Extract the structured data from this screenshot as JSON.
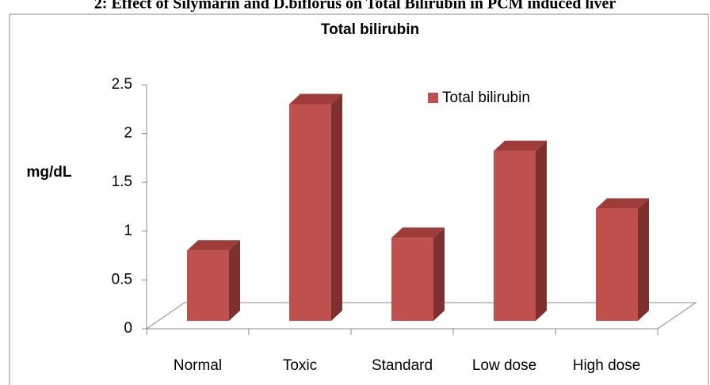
{
  "caption": "2: Effect of Silymarin and D.biflorus on Total Bilirubin in PCM induced liver",
  "chart_data": {
    "type": "bar3d",
    "title": "Total bilirubin",
    "y_label": "mg/dL",
    "categories": [
      "Normal",
      "Toxic",
      "Standard",
      "Low dose",
      "High dose"
    ],
    "series": [
      {
        "name": "Total bilirubin",
        "color": "#c0504d",
        "values": [
          0.72,
          2.22,
          0.85,
          1.74,
          1.15
        ]
      }
    ],
    "ylim": [
      0,
      2.5
    ],
    "yticks": [
      0,
      0.5,
      1,
      1.5,
      2,
      2.5
    ],
    "legend": "top-right",
    "grid": false
  }
}
